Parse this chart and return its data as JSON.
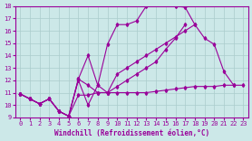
{
  "xlabel": "Windchill (Refroidissement éolien,°C)",
  "background_color": "#cce8e8",
  "line_color": "#990099",
  "grid_color": "#aacccc",
  "xlim": [
    -0.5,
    23.5
  ],
  "ylim": [
    9,
    18
  ],
  "xticks": [
    0,
    1,
    2,
    3,
    4,
    5,
    6,
    7,
    8,
    9,
    10,
    11,
    12,
    13,
    14,
    15,
    16,
    17,
    18,
    19,
    20,
    21,
    22,
    23
  ],
  "yticks": [
    9,
    10,
    11,
    12,
    13,
    14,
    15,
    16,
    17,
    18
  ],
  "series": [
    {
      "x": [
        0,
        1,
        2,
        3,
        4,
        5,
        6,
        7,
        8,
        9,
        10,
        11,
        12,
        13,
        14,
        15,
        16,
        17,
        18,
        19,
        20,
        21,
        22,
        23
      ],
      "y": [
        10.9,
        10.5,
        10.1,
        10.5,
        9.5,
        9.1,
        10.8,
        10.8,
        11.0,
        11.0,
        11.0,
        11.0,
        11.0,
        11.0,
        11.1,
        11.2,
        11.3,
        11.4,
        11.5,
        11.5,
        11.5,
        11.6,
        11.6,
        11.6
      ]
    },
    {
      "x": [
        0,
        1,
        2,
        3,
        4,
        5,
        6,
        7,
        8,
        9,
        10,
        11,
        12,
        13,
        14,
        15,
        16,
        17,
        18,
        19,
        20,
        21,
        22
      ],
      "y": [
        10.9,
        10.5,
        10.1,
        10.5,
        9.5,
        9.1,
        12.0,
        10.0,
        11.6,
        14.9,
        16.5,
        16.5,
        16.8,
        18.0,
        18.1,
        18.1,
        18.0,
        17.9,
        16.5,
        15.4,
        14.9,
        12.7,
        11.6
      ]
    },
    {
      "x": [
        0,
        1,
        2,
        3,
        4,
        5,
        6,
        7,
        8,
        9,
        10,
        11,
        12,
        13,
        14,
        15,
        16,
        17,
        18,
        19,
        20,
        21,
        22,
        23
      ],
      "y": [
        10.9,
        10.5,
        10.1,
        10.5,
        9.5,
        9.1,
        12.1,
        14.0,
        11.6,
        11.0,
        12.5,
        13.0,
        13.5,
        14.0,
        14.5,
        15.0,
        15.5,
        16.0,
        16.5,
        null,
        null,
        null,
        null,
        null
      ]
    },
    {
      "x": [
        0,
        1,
        2,
        3,
        4,
        5,
        6,
        7,
        8,
        9,
        10,
        11,
        12,
        13,
        14,
        15,
        16,
        17,
        18,
        19,
        20,
        21,
        22,
        23
      ],
      "y": [
        10.9,
        10.5,
        10.1,
        10.5,
        9.5,
        9.1,
        12.1,
        11.6,
        11.0,
        11.0,
        11.5,
        12.0,
        12.5,
        13.0,
        13.5,
        14.5,
        15.4,
        16.5,
        null,
        null,
        null,
        null,
        null,
        null
      ]
    }
  ]
}
